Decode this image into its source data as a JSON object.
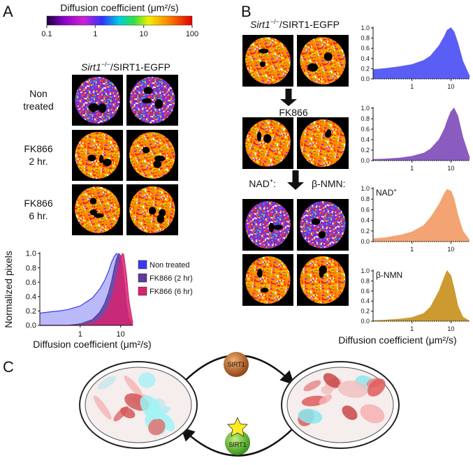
{
  "panel_labels": [
    "A",
    "B",
    "C"
  ],
  "colorbar": {
    "title": "Diffusion coefficient (μm²/s)",
    "xlim": [
      0.1,
      100
    ],
    "xticks": [
      0.1,
      1,
      10,
      100
    ],
    "log_x": true
  },
  "panel_a": {
    "header": {
      "gene": "Sirt1",
      "sup": "−/−",
      "suffix": "/SIRT1-EGFP"
    },
    "row_labels": [
      [
        "Non",
        "treated"
      ],
      [
        "FK866",
        "2 hr."
      ],
      [
        "FK866",
        "6 hr."
      ]
    ]
  },
  "panel_b": {
    "header": {
      "gene": "Sirt1",
      "sup": "−/−",
      "suffix": "/SIRT1-EGFP"
    },
    "step": "FK866",
    "nad": {
      "base": "NAD",
      "sup": "+",
      "suffix": ":"
    },
    "nmn": "β-NMN:"
  },
  "panel_c": {
    "top": "SIRT1",
    "bottom": "SIRT1"
  },
  "chart_data": [
    {
      "type": "area",
      "log_x": true,
      "xlim": [
        0.1,
        20
      ],
      "xticks": [
        1,
        10
      ],
      "ylim": [
        0,
        1
      ],
      "yticks": [
        {
          "value": 0,
          "label": "0.0"
        },
        {
          "value": 0.2,
          "label": "0.2"
        },
        {
          "value": 0.4,
          "label": "0.4"
        },
        {
          "value": 0.6,
          "label": "0.6"
        },
        {
          "value": 0.8,
          "label": "0.8"
        },
        {
          "value": 1,
          "label": "1.0"
        }
      ],
      "ylabel": "Normalized pixels",
      "xlabel": "Diffusion coefficient (μm²/s)",
      "legend": "outside-right",
      "x": [
        0.1,
        0.2,
        0.3,
        0.5,
        1,
        2,
        3,
        4,
        5,
        6,
        7,
        8,
        9,
        10,
        11,
        12,
        14,
        16,
        20
      ],
      "series": [
        {
          "name": "Non treated",
          "color": "#3a3af0",
          "values": [
            0.17,
            0.19,
            0.2,
            0.22,
            0.27,
            0.38,
            0.5,
            0.62,
            0.75,
            0.88,
            0.96,
            1.0,
            0.95,
            0.8,
            0.6,
            0.4,
            0.15,
            0.04,
            0
          ]
        },
        {
          "name": "FK866 (2 hr)",
          "color": "#5e3a9e",
          "values": [
            0,
            0,
            0,
            0,
            0.02,
            0.08,
            0.18,
            0.3,
            0.45,
            0.62,
            0.8,
            0.93,
            1.0,
            0.97,
            0.85,
            0.65,
            0.3,
            0.1,
            0.01
          ]
        },
        {
          "name": "FK866 (6 hr)",
          "color": "#d8256e",
          "values": [
            0,
            0,
            0,
            0,
            0,
            0.03,
            0.08,
            0.15,
            0.25,
            0.38,
            0.52,
            0.66,
            0.8,
            0.92,
            1.0,
            0.98,
            0.7,
            0.35,
            0.03
          ]
        }
      ]
    },
    {
      "type": "area",
      "log_x": true,
      "xlim": [
        0.1,
        30
      ],
      "xticks": [
        1,
        10
      ],
      "ylim": [
        0,
        1
      ],
      "yticks": [
        {
          "value": 0,
          "label": "0.0"
        },
        {
          "value": 0.2,
          "label": "0.2"
        },
        {
          "value": 0.4,
          "label": "0.4"
        },
        {
          "value": 0.6,
          "label": "0.6"
        },
        {
          "value": 0.8,
          "label": "0.8"
        },
        {
          "value": 1,
          "label": "1.0"
        }
      ],
      "x": [
        0.1,
        0.2,
        0.5,
        1,
        2,
        3,
        5,
        7,
        8,
        10,
        12,
        15,
        20,
        30
      ],
      "series": [
        {
          "color": "#5a5ef5",
          "values": [
            0.18,
            0.2,
            0.24,
            0.28,
            0.36,
            0.45,
            0.65,
            0.85,
            0.95,
            1.0,
            0.92,
            0.7,
            0.35,
            0.05
          ]
        }
      ]
    },
    {
      "type": "area",
      "log_x": true,
      "xlim": [
        0.1,
        30
      ],
      "xticks": [
        1,
        10
      ],
      "ylim": [
        0,
        1
      ],
      "yticks": [
        {
          "value": 0,
          "label": "0.0"
        },
        {
          "value": 0.2,
          "label": "0.2"
        },
        {
          "value": 0.4,
          "label": "0.4"
        },
        {
          "value": 0.6,
          "label": "0.6"
        },
        {
          "value": 0.8,
          "label": "0.8"
        },
        {
          "value": 1,
          "label": "1.0"
        }
      ],
      "x": [
        0.1,
        0.2,
        0.5,
        1,
        2,
        3,
        5,
        7,
        8,
        10,
        12,
        15,
        20,
        30
      ],
      "series": [
        {
          "color": "#8a5cc0",
          "values": [
            0.02,
            0.03,
            0.05,
            0.08,
            0.14,
            0.22,
            0.4,
            0.62,
            0.75,
            0.93,
            1.0,
            0.85,
            0.45,
            0.05
          ]
        }
      ]
    },
    {
      "type": "area",
      "log_x": true,
      "xlim": [
        0.1,
        30
      ],
      "xticks": [
        1,
        10
      ],
      "ylim": [
        0,
        1
      ],
      "yticks": [
        {
          "value": 0,
          "label": "0.0"
        },
        {
          "value": 0.2,
          "label": "0.2"
        },
        {
          "value": 0.4,
          "label": "0.4"
        },
        {
          "value": 0.6,
          "label": "0.6"
        },
        {
          "value": 0.8,
          "label": "0.8"
        },
        {
          "value": 1,
          "label": "1.0"
        }
      ],
      "annotation": {
        "base": "NAD",
        "sup": "+"
      },
      "x": [
        0.1,
        0.2,
        0.5,
        1,
        2,
        3,
        5,
        7,
        8,
        10,
        12,
        15,
        20,
        30
      ],
      "series": [
        {
          "color": "#f4a472",
          "values": [
            0.05,
            0.07,
            0.12,
            0.18,
            0.3,
            0.45,
            0.7,
            0.92,
            0.98,
            0.95,
            0.8,
            0.5,
            0.2,
            0.02
          ]
        }
      ]
    },
    {
      "type": "area",
      "log_x": true,
      "xlim": [
        0.1,
        30
      ],
      "xticks": [
        1,
        10
      ],
      "ylim": [
        0,
        1
      ],
      "yticks": [
        {
          "value": 0,
          "label": "0.0"
        },
        {
          "value": 0.2,
          "label": "0.2"
        },
        {
          "value": 0.4,
          "label": "0.4"
        },
        {
          "value": 0.6,
          "label": "0.6"
        },
        {
          "value": 0.8,
          "label": "0.8"
        },
        {
          "value": 1,
          "label": "1.0"
        }
      ],
      "annotation": "β-NMN",
      "xlabel": "Diffusion coefficient (μm²/s)",
      "x": [
        0.1,
        0.2,
        0.5,
        1,
        2,
        3,
        5,
        7,
        8,
        10,
        12,
        15,
        20,
        30
      ],
      "series": [
        {
          "color": "#cc9a30",
          "values": [
            0.01,
            0.02,
            0.04,
            0.07,
            0.15,
            0.28,
            0.6,
            0.9,
            1.0,
            0.9,
            0.65,
            0.3,
            0.08,
            0.0
          ]
        }
      ]
    }
  ]
}
